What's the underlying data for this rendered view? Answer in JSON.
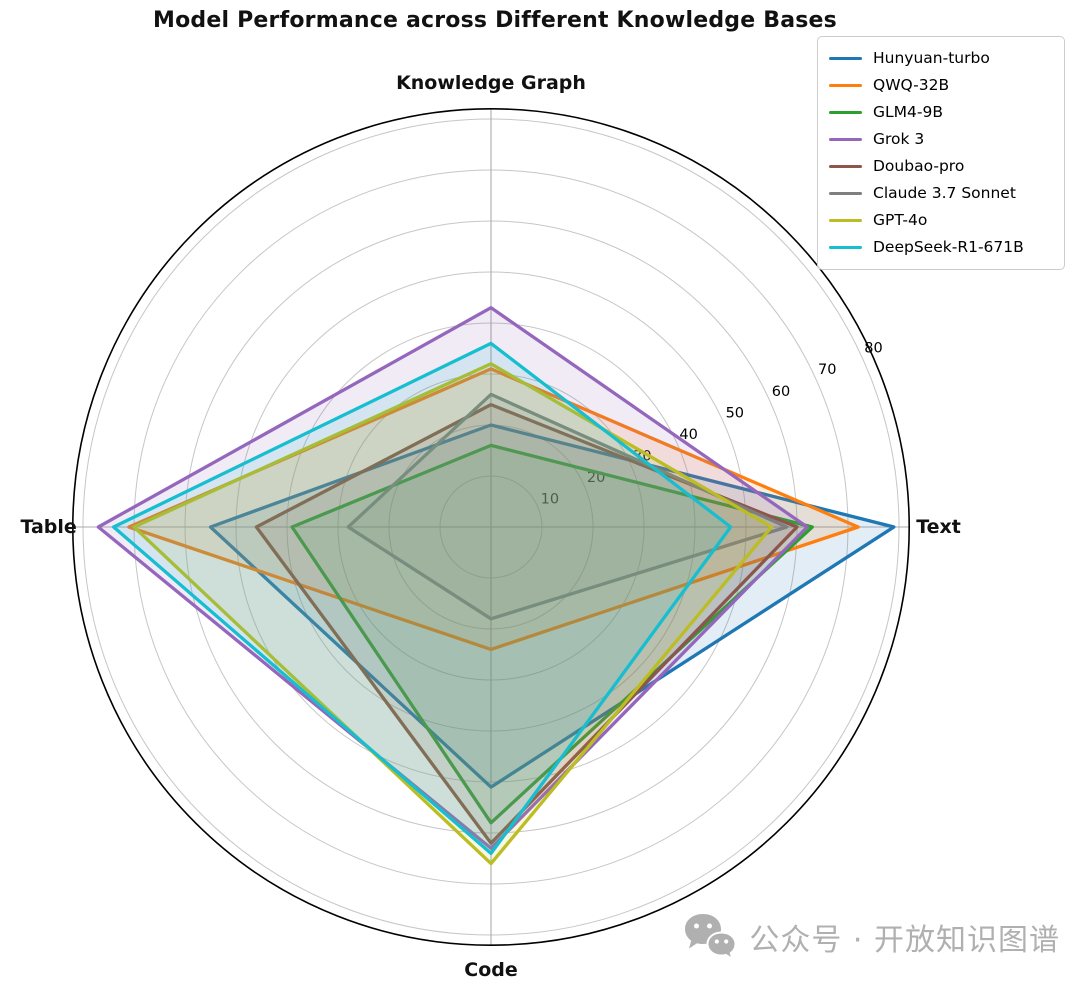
{
  "title": "Model Performance across Different Knowledge Bases",
  "chart_data": {
    "type": "radar",
    "title": "Model Performance across Different Knowledge Bases",
    "categories": [
      "Knowledge Graph",
      "Text",
      "Code",
      "Table"
    ],
    "r_ticks": [
      10,
      20,
      30,
      40,
      50,
      60,
      70,
      80
    ],
    "r_max": 82,
    "grid": true,
    "legend_position": "upper right",
    "fill_alpha": 0.13,
    "series": [
      {
        "name": "Hunyuan-turbo",
        "color": "#1f77b4",
        "values": [
          20,
          79,
          51,
          55
        ]
      },
      {
        "name": "QWQ-32B",
        "color": "#ff7f0e",
        "values": [
          31,
          72,
          24,
          71
        ]
      },
      {
        "name": "GLM4-9B",
        "color": "#2ca02c",
        "values": [
          16,
          63,
          58,
          39
        ]
      },
      {
        "name": "Grok 3",
        "color": "#9467bd",
        "values": [
          43,
          62,
          63,
          77
        ]
      },
      {
        "name": "Doubao-pro",
        "color": "#8c564b",
        "values": [
          24,
          60,
          62,
          46
        ]
      },
      {
        "name": "Claude 3.7 Sonnet",
        "color": "#7f7f7f",
        "values": [
          26,
          58,
          18,
          28
        ]
      },
      {
        "name": "GPT-4o",
        "color": "#bcbd22",
        "values": [
          32,
          55,
          66,
          70
        ]
      },
      {
        "name": "DeepSeek-R1-671B",
        "color": "#17becf",
        "values": [
          36,
          47,
          64,
          74
        ]
      }
    ]
  },
  "watermark": {
    "icon": "wechat-icon",
    "text": "公众号 · 开放知识图谱"
  }
}
